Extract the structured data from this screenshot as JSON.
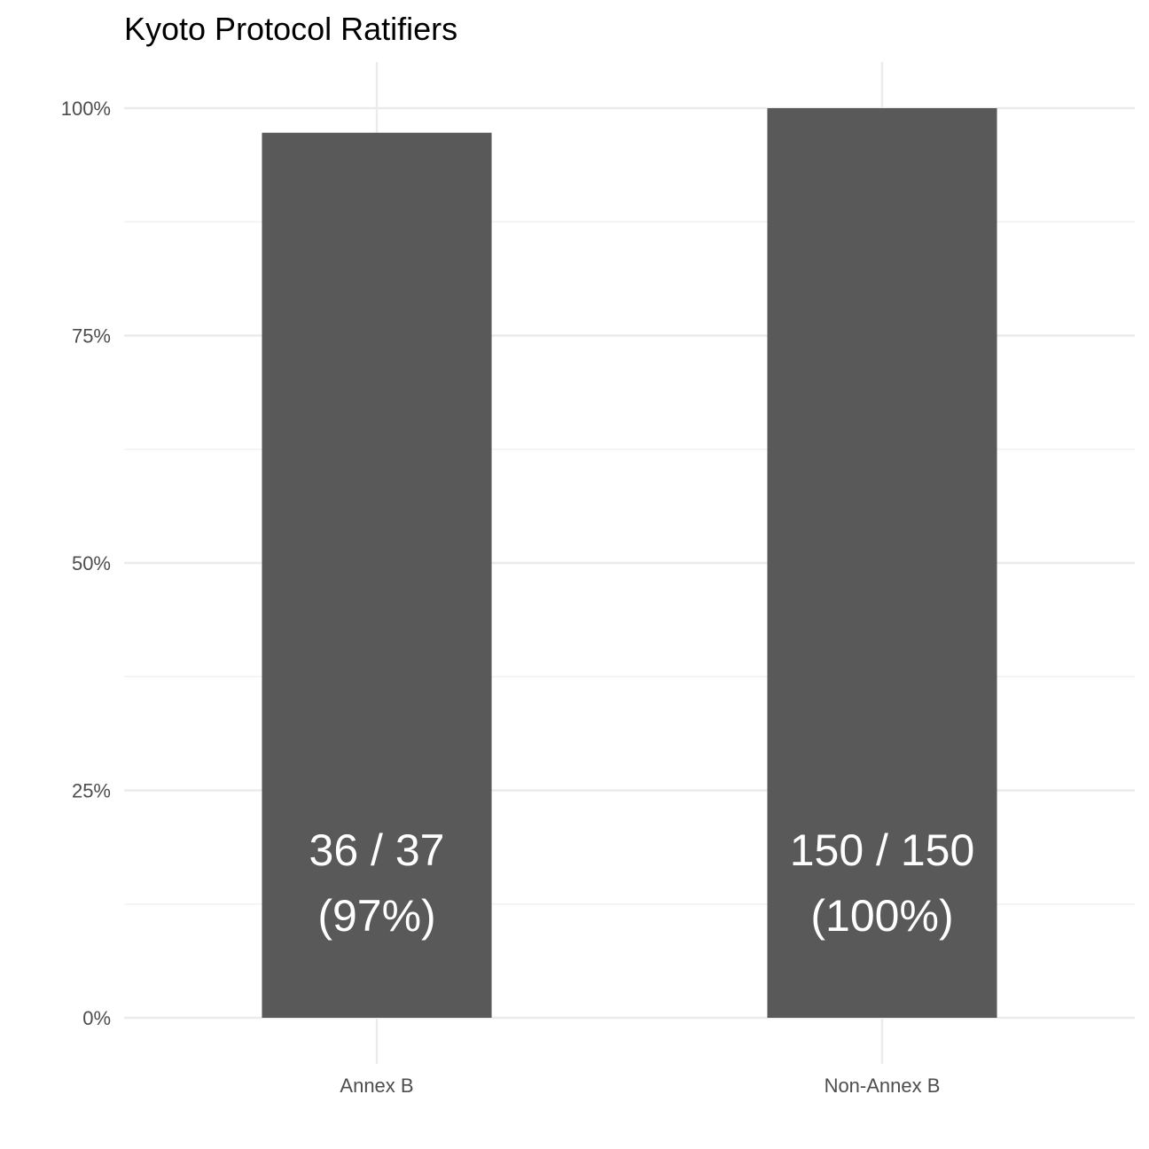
{
  "chart_data": {
    "type": "bar",
    "title": "Kyoto Protocol Ratifiers",
    "xlabel": "",
    "ylabel": "",
    "categories": [
      "Annex B",
      "Non-Annex B"
    ],
    "values": [
      0.973,
      1.0
    ],
    "counts": [
      {
        "ratified": 36,
        "total": 37
      },
      {
        "ratified": 150,
        "total": 150
      }
    ],
    "data_labels": [
      [
        "36 / 37",
        "(97%)"
      ],
      [
        "150 / 150",
        "(100%)"
      ]
    ],
    "ylim": [
      0,
      1
    ],
    "y_ticks": [
      0,
      0.25,
      0.5,
      0.75,
      1.0
    ],
    "y_tick_labels": [
      "0%",
      "25%",
      "50%",
      "75%",
      "100%"
    ],
    "grid": true,
    "legend": "none",
    "colors": {
      "bar": "#595959",
      "bar_label": "#ffffff",
      "grid": "#ebebeb",
      "tick_text": "#4d4d4d",
      "title": "#000000"
    }
  }
}
